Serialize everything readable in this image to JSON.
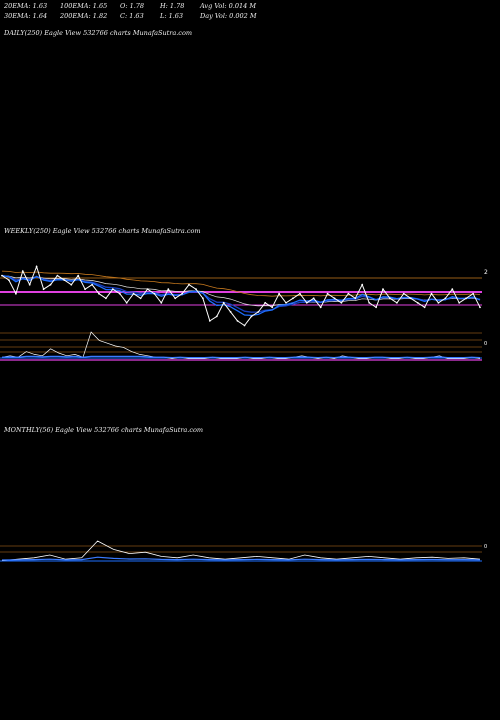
{
  "header": {
    "row1": [
      "20EMA: 1.63",
      "100EMA: 1.65",
      "O: 1.78",
      "H: 1.78",
      "Avg Vol: 0.014  M"
    ],
    "row2": [
      "30EMA: 1.64",
      "200EMA: 1.82",
      "C: 1.63",
      "L: 1.63",
      "Day Vol: 0.002  M"
    ]
  },
  "panels": {
    "daily": {
      "label": "DAILY(250) Eagle  View  532766  charts MunafaSutra.com"
    },
    "weekly": {
      "label": "WEEKLY(250) Eagle  View  532766  charts MunafaSutra.com",
      "price_tick": "2",
      "volume_tick": "0"
    },
    "monthly": {
      "label": "MONTHLY(56) Eagle  View  532766  charts MunafaSutra.com",
      "volume_tick": "0"
    }
  },
  "colors": {
    "background": "#000000",
    "price": "#ffffff",
    "ema_blue": "#1e6fff",
    "ema_orange": "#c87a1e",
    "band_magenta": "#e040e0",
    "band_orange": "#d2691e",
    "volume": "#3a7bff"
  },
  "chart_data": [
    {
      "type": "line",
      "panel": "WEEKLY(250)",
      "series": [
        {
          "values": [
            2.0,
            1.95,
            1.8,
            2.05,
            1.9,
            2.1,
            1.85,
            1.9,
            2.0,
            1.95,
            1.9,
            2.0,
            1.85,
            1.9,
            1.8,
            1.75,
            1.85,
            1.8,
            1.7,
            1.8,
            1.75,
            1.85,
            1.8,
            1.7,
            1.85,
            1.75,
            1.8,
            1.9,
            1.85,
            1.75,
            1.5,
            1.55,
            1.7,
            1.6,
            1.5,
            1.45,
            1.55,
            1.6,
            1.7,
            1.65,
            1.8,
            1.7,
            1.75,
            1.8,
            1.7,
            1.75,
            1.65,
            1.8,
            1.75,
            1.7,
            1.8,
            1.75,
            1.9,
            1.7,
            1.65,
            1.85,
            1.75,
            1.7,
            1.8,
            1.75,
            1.7,
            1.65,
            1.8,
            1.7,
            1.75,
            1.85,
            1.7,
            1.75,
            1.8,
            1.65
          ]
        }
      ],
      "emas": [
        "20EMA",
        "30EMA",
        "100EMA",
        "200EMA"
      ],
      "ytick": "2"
    },
    {
      "type": "line",
      "panel": "MONTHLY(56)",
      "series": [
        {
          "values": [
            1.6,
            1.65,
            1.7,
            1.8,
            1.65,
            1.7,
            2.3,
            2.0,
            1.85,
            1.9,
            1.75,
            1.7,
            1.8,
            1.7,
            1.65,
            1.7,
            1.75,
            1.7,
            1.65,
            1.8,
            1.7,
            1.65,
            1.7,
            1.75,
            1.7,
            1.65,
            1.7,
            1.72,
            1.68,
            1.7,
            1.65
          ]
        }
      ]
    }
  ]
}
